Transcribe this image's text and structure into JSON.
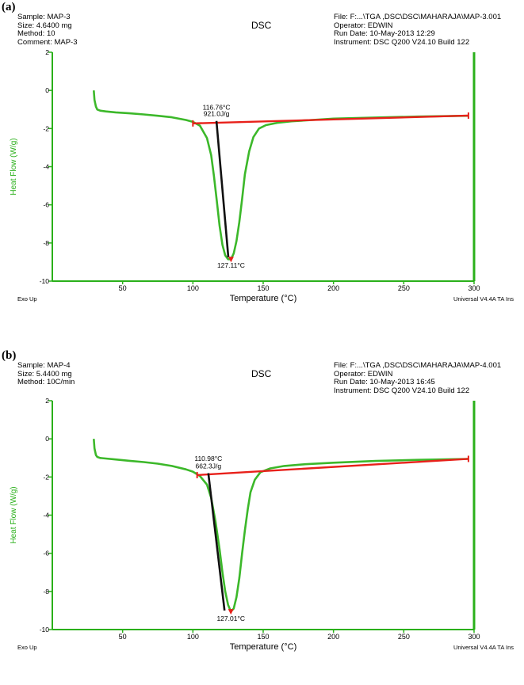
{
  "panels": [
    {
      "label": "(a)",
      "title": "DSC",
      "header_left": [
        "Sample: MAP-3",
        "Size:  4.6400 mg",
        "Method: 10",
        "Comment: MAP-3"
      ],
      "header_right": [
        "File: F:...\\TGA ,DSC\\DSC\\MAHARAJA\\MAP-3.001",
        "Operator: EDWIN",
        "Run Date: 10-May-2013 12:29",
        "Instrument: DSC Q200 V24.10 Build 122"
      ],
      "exo_label": "Exo Up",
      "software_label": "Universal V4.4A TA Ins",
      "onset_temp_label": "116.76°C",
      "enthalpy_label": "921.0J/g",
      "peak_label": "127.11°C"
    },
    {
      "label": "(b)",
      "title": "DSC",
      "header_left": [
        "Sample: MAP-4",
        "Size:  5.4400 mg",
        "Method: 10C/min"
      ],
      "header_right": [
        "File: F:...\\TGA ,DSC\\DSC\\MAHARAJA\\MAP-4.001",
        "Operator: EDWIN",
        "Run Date: 10-May-2013 16:45",
        "Instrument: DSC Q200 V24.10 Build 122"
      ],
      "exo_label": "Exo Up",
      "software_label": "Universal V4.4A TA Ins",
      "onset_temp_label": "110.98°C",
      "enthalpy_label": "662.3J/g",
      "peak_label": "127.01°C"
    }
  ],
  "chart_data": [
    {
      "type": "line",
      "title": "DSC",
      "xlabel": "Temperature (°C)",
      "ylabel": "Heat Flow (W/g)",
      "xlim": [
        0,
        300
      ],
      "ylim": [
        -10,
        2
      ],
      "x_ticks": [
        50,
        100,
        150,
        200,
        250,
        300
      ],
      "y_ticks": [
        2,
        0,
        -2,
        -4,
        -6,
        -8,
        -10
      ],
      "colors": {
        "curve": "#3cb82a",
        "baseline": "#e8201a",
        "tangent": "#111111",
        "axis": "#2ab01a"
      },
      "series": [
        {
          "x": [
            29.5,
            30,
            31,
            32,
            34,
            38,
            45,
            55,
            65,
            75,
            85,
            95,
            100,
            105,
            110,
            113,
            115,
            117,
            119,
            121,
            123,
            125,
            127.11,
            129,
            131,
            133,
            135,
            137,
            140,
            143,
            147,
            152,
            160,
            170,
            185,
            200,
            230,
            260,
            296
          ],
          "y": [
            0.0,
            -0.5,
            -0.85,
            -1.0,
            -1.06,
            -1.1,
            -1.15,
            -1.2,
            -1.26,
            -1.33,
            -1.41,
            -1.55,
            -1.65,
            -1.85,
            -2.5,
            -3.4,
            -4.5,
            -5.8,
            -7.1,
            -8.1,
            -8.65,
            -8.85,
            -8.85,
            -8.55,
            -7.9,
            -6.9,
            -5.7,
            -4.4,
            -3.2,
            -2.45,
            -2.0,
            -1.82,
            -1.7,
            -1.62,
            -1.55,
            -1.48,
            -1.42,
            -1.37,
            -1.33
          ]
        }
      ],
      "baseline": {
        "x": [
          100,
          296
        ],
        "y": [
          -1.73,
          -1.32
        ]
      },
      "tangent": {
        "x": [
          116.76,
          125.2
        ],
        "y": [
          -1.6,
          -8.75
        ]
      },
      "annotations": [
        {
          "text": "116.76°C",
          "x": 116.76,
          "y": -1.0
        },
        {
          "text": "921.0J/g",
          "x": 116.76,
          "y": -1.35
        },
        {
          "text": "127.11°C",
          "x": 127.11,
          "y": -9.3
        }
      ]
    },
    {
      "type": "line",
      "title": "DSC",
      "xlabel": "Temperature (°C)",
      "ylabel": "Heat Flow (W/g)",
      "xlim": [
        0,
        300
      ],
      "ylim": [
        -10,
        2
      ],
      "x_ticks": [
        50,
        100,
        150,
        200,
        250,
        300
      ],
      "y_ticks": [
        2,
        0,
        -2,
        -4,
        -6,
        -8,
        -10
      ],
      "colors": {
        "curve": "#3cb82a",
        "baseline": "#e8201a",
        "tangent": "#111111",
        "axis": "#2ab01a"
      },
      "series": [
        {
          "x": [
            29.5,
            30,
            31,
            32,
            34,
            38,
            45,
            55,
            65,
            75,
            85,
            95,
            100,
            105,
            110,
            113,
            116,
            119,
            121,
            123,
            125,
            127.01,
            129,
            131,
            133,
            135,
            137,
            139,
            141,
            144,
            148,
            155,
            165,
            180,
            200,
            230,
            260,
            296
          ],
          "y": [
            0.0,
            -0.5,
            -0.85,
            -0.95,
            -1.0,
            -1.03,
            -1.08,
            -1.15,
            -1.22,
            -1.3,
            -1.42,
            -1.6,
            -1.72,
            -1.95,
            -2.4,
            -3.1,
            -4.3,
            -5.8,
            -7.0,
            -8.0,
            -8.7,
            -9.05,
            -8.9,
            -8.3,
            -7.3,
            -6.0,
            -4.8,
            -3.7,
            -2.8,
            -2.15,
            -1.75,
            -1.55,
            -1.42,
            -1.33,
            -1.25,
            -1.16,
            -1.1,
            -1.05
          ]
        }
      ],
      "baseline": {
        "x": [
          103,
          296
        ],
        "y": [
          -1.9,
          -1.05
        ]
      },
      "tangent": {
        "x": [
          110.98,
          122.5
        ],
        "y": [
          -1.8,
          -9.0
        ]
      },
      "annotations": [
        {
          "text": "110.98°C",
          "x": 110.98,
          "y": -1.15
        },
        {
          "text": "662.3J/g",
          "x": 110.98,
          "y": -1.55
        },
        {
          "text": "127.01°C",
          "x": 127.01,
          "y": -9.55
        }
      ]
    }
  ]
}
